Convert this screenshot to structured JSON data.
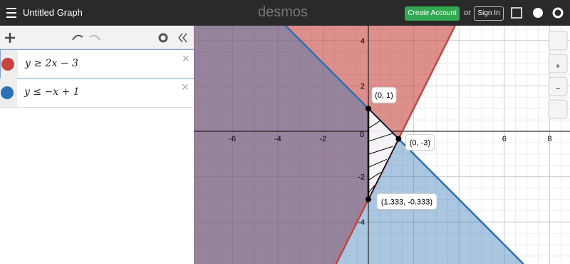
{
  "header": {
    "title": "Untitled Graph",
    "logo": "desmos",
    "create_account": "Create Account",
    "or": "or",
    "sign_in": "Sign In"
  },
  "expressions": [
    {
      "latex": "y ≥ 2x − 3"
    },
    {
      "latex": "y ≤ −x + 1"
    }
  ],
  "graph": {
    "x_ticks": [
      -6,
      -4,
      -2,
      6,
      8
    ],
    "y_ticks": [
      4,
      2,
      -2,
      -4
    ],
    "origin": 0,
    "points": [
      {
        "label": "(0, 1)"
      },
      {
        "label": "(1.333, -0.333)"
      },
      {
        "label": "(0, -3)"
      }
    ]
  }
}
